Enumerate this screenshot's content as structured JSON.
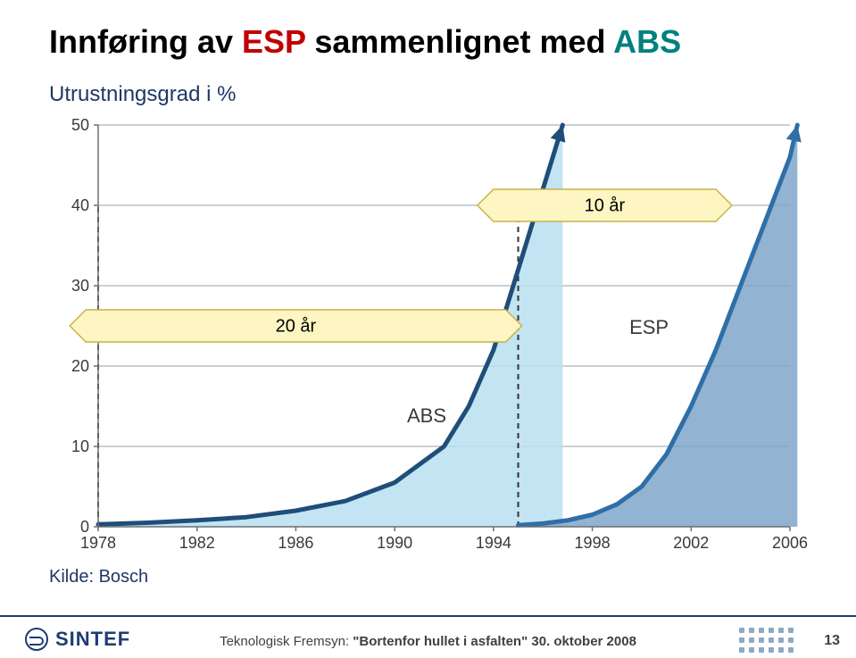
{
  "title": {
    "prefix": "Innføring av ",
    "highlight1": "ESP",
    "middle": " sammenlignet med ",
    "highlight2": "ABS",
    "color_prefix": "#000000",
    "color_h1": "#c00000",
    "color_h2": "#008080",
    "fontsize": 36
  },
  "subtitle": {
    "text": "Utrustningsgrad i %",
    "color": "#1f3864",
    "fontsize": 24
  },
  "chart": {
    "type": "area-line",
    "xlim": [
      1978,
      2006
    ],
    "ylim": [
      0,
      50
    ],
    "yticks": [
      0,
      10,
      20,
      30,
      40,
      50
    ],
    "xticks": [
      1978,
      1982,
      1986,
      1990,
      1994,
      1998,
      2002,
      2006
    ],
    "background_color": "#ffffff",
    "grid_color": "#9aa0a6",
    "axis_color": "#6b6f73",
    "axis_fontsize": 18,
    "series": [
      {
        "name": "ABS",
        "label_pos": {
          "x": 1990.5,
          "y": 13
        },
        "label_fontsize": 22,
        "line_color": "#1e4e79",
        "line_width": 5,
        "fill_color": "#b9dff0",
        "fill_opacity": 0.85,
        "arrow": true,
        "points": [
          {
            "x": 1978,
            "y": 0.3
          },
          {
            "x": 1980,
            "y": 0.5
          },
          {
            "x": 1982,
            "y": 0.8
          },
          {
            "x": 1984,
            "y": 1.2
          },
          {
            "x": 1986,
            "y": 2.0
          },
          {
            "x": 1988,
            "y": 3.2
          },
          {
            "x": 1990,
            "y": 5.5
          },
          {
            "x": 1992,
            "y": 10
          },
          {
            "x": 1993,
            "y": 15
          },
          {
            "x": 1994,
            "y": 22
          },
          {
            "x": 1995,
            "y": 32
          },
          {
            "x": 1996,
            "y": 42
          },
          {
            "x": 1996.8,
            "y": 50
          }
        ]
      },
      {
        "name": "ESP",
        "label_pos": {
          "x": 1999.5,
          "y": 24
        },
        "label_fontsize": 22,
        "line_color": "#2f6fa7",
        "line_width": 5,
        "fill_color": "#7fa6c9",
        "fill_opacity": 0.85,
        "arrow": true,
        "points": [
          {
            "x": 1995,
            "y": 0.2
          },
          {
            "x": 1996,
            "y": 0.4
          },
          {
            "x": 1997,
            "y": 0.8
          },
          {
            "x": 1998,
            "y": 1.5
          },
          {
            "x": 1999,
            "y": 2.8
          },
          {
            "x": 2000,
            "y": 5
          },
          {
            "x": 2001,
            "y": 9
          },
          {
            "x": 2002,
            "y": 15
          },
          {
            "x": 2003,
            "y": 22
          },
          {
            "x": 2004,
            "y": 30
          },
          {
            "x": 2005,
            "y": 38
          },
          {
            "x": 2006,
            "y": 46
          },
          {
            "x": 2006.3,
            "y": 50
          }
        ]
      }
    ],
    "reference_lines": [
      {
        "x": 1978,
        "style": "dashed",
        "color": "#333333",
        "width": 2
      },
      {
        "x": 1995,
        "style": "dashed",
        "color": "#333333",
        "width": 2
      }
    ],
    "annotations": [
      {
        "text": "10 år",
        "shape": "hex-banner",
        "cx_year": 1998.5,
        "cy_pct": 40,
        "fill": "#fdf6c2",
        "stroke": "#c9b24a",
        "width_years": 9,
        "fontsize": 20
      },
      {
        "text": "20 år",
        "shape": "hex-banner",
        "cx_year": 1986,
        "cy_pct": 25,
        "fill": "#fdf6c2",
        "stroke": "#c9b24a",
        "width_years": 17,
        "fontsize": 20
      }
    ]
  },
  "source": {
    "label": "Kilde: Bosch",
    "color": "#1f3864",
    "fontsize": 20
  },
  "footer": {
    "logo_text": "SINTEF",
    "center_text_prefix": "Teknologisk Fremsyn: ",
    "center_text_bold": "\"Bortenfor hullet i asfalten\" 30. oktober 2008",
    "page_number": "13",
    "line_color": "#1f3b73"
  }
}
